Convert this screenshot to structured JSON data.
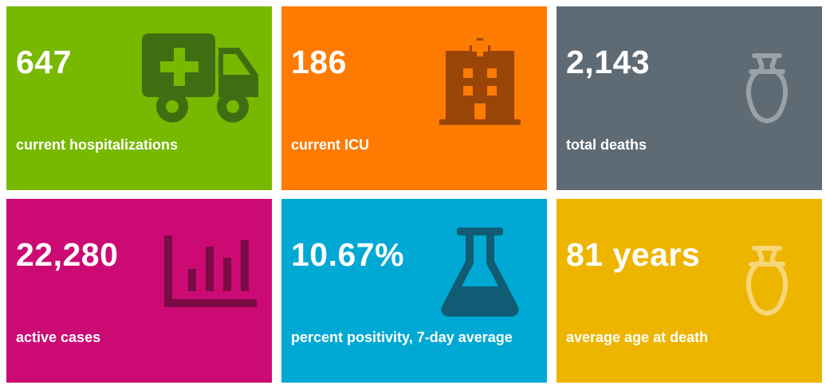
{
  "tiles": [
    {
      "value": "647",
      "label": "current hospitalizations",
      "icon": "ambulance-icon",
      "bg": "#77b800",
      "icon_color": "#3f6e12"
    },
    {
      "value": "186",
      "label": "current ICU",
      "icon": "hospital-building-icon",
      "bg": "#ff7a00",
      "icon_color": "#9a4508"
    },
    {
      "value": "2,143",
      "label": "total deaths",
      "icon": "urn-icon",
      "bg": "#5f6b74",
      "icon_color": "#9aa1a7"
    },
    {
      "value": "22,280",
      "label": "active cases",
      "icon": "bar-chart-icon",
      "bg": "#cc0a74",
      "icon_color": "#7a0b45"
    },
    {
      "value": "10.67%",
      "label": "percent positivity, 7-day average",
      "icon": "flask-icon",
      "bg": "#00a8d4",
      "icon_color": "#0f5c74"
    },
    {
      "value": "81 years",
      "label": "average age at death",
      "icon": "urn-icon",
      "bg": "#eeb500",
      "icon_color": "#f6d77a"
    }
  ]
}
